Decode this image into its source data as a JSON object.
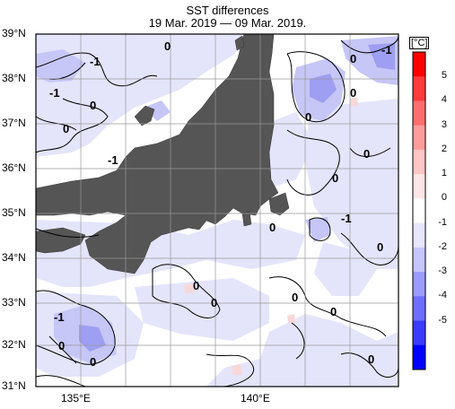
{
  "title": "SST differences",
  "subtitle": "19 Mar. 2019 — 09 Mar. 2019.",
  "lat_labels": [
    "39°N",
    "38°N",
    "37°N",
    "36°N",
    "35°N",
    "34°N",
    "33°N",
    "32°N",
    "31°N"
  ],
  "lon_labels": [
    "135°E",
    "140°E"
  ],
  "colorbar": {
    "unit": "[°C]",
    "ticks": [
      "5",
      "4",
      "3",
      "2",
      "1",
      "0",
      "-1",
      "-2",
      "-3",
      "-4",
      "-5"
    ],
    "colors": [
      "#ff0000",
      "#ff3b3b",
      "#ff6e6e",
      "#ff9c9c",
      "#ffc6c6",
      "#ffe6e6",
      "#ffffff",
      "#e6e6ff",
      "#c6c6ff",
      "#9c9cff",
      "#6e6eff",
      "#3b3bff",
      "#0000ff"
    ]
  },
  "contour_labels": [
    "0",
    "-1",
    "0",
    "-1",
    "0",
    "-1",
    "0",
    "0",
    "0",
    "-1",
    "0",
    "0",
    "0",
    "0",
    "-1",
    "0",
    "0",
    "-1",
    "0",
    "0",
    "0",
    "0",
    "0"
  ],
  "map": {
    "lat_range": [
      31,
      39
    ],
    "lon_range": [
      134,
      142
    ],
    "land_color": "#555555",
    "ocean_colors": [
      "#ffffff",
      "#e6e6ff",
      "#c6c6ff",
      "#9c9cff"
    ]
  }
}
